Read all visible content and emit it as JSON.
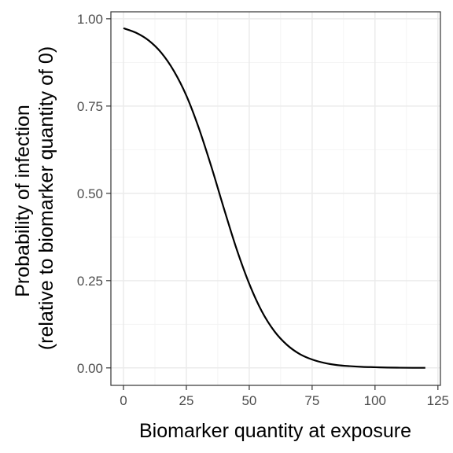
{
  "chart_data": {
    "type": "line",
    "title": "",
    "xlabel": "Biomarker quantity at exposure",
    "ylabel_lines": [
      "Probability of infection",
      "(relative to biomarker quantity of 0)"
    ],
    "xlim": [
      -5,
      126
    ],
    "ylim": [
      -0.05,
      1.02
    ],
    "x_ticks": [
      0,
      25,
      50,
      75,
      100,
      125
    ],
    "x_tick_labels": [
      "0",
      "25",
      "50",
      "75",
      "100",
      "125"
    ],
    "y_ticks": [
      0,
      0.25,
      0.5,
      0.75,
      1.0
    ],
    "y_tick_labels": [
      "0.00",
      "0.25",
      "0.50",
      "0.75",
      "1.00"
    ],
    "grid": true,
    "theme": "bw",
    "series": [
      {
        "color": "#000000",
        "x": [
          0,
          5,
          10,
          15,
          20,
          25,
          30,
          35,
          40,
          45,
          50,
          55,
          60,
          65,
          70,
          75,
          80,
          85,
          90,
          95,
          100,
          105,
          110,
          115,
          120
        ],
        "y": [
          0.973,
          0.96,
          0.938,
          0.903,
          0.851,
          0.78,
          0.686,
          0.575,
          0.455,
          0.34,
          0.241,
          0.162,
          0.105,
          0.066,
          0.04,
          0.024,
          0.014,
          0.008,
          0.005,
          0.003,
          0.002,
          0.001,
          0.0006,
          0.0003,
          0.0002
        ]
      }
    ]
  }
}
